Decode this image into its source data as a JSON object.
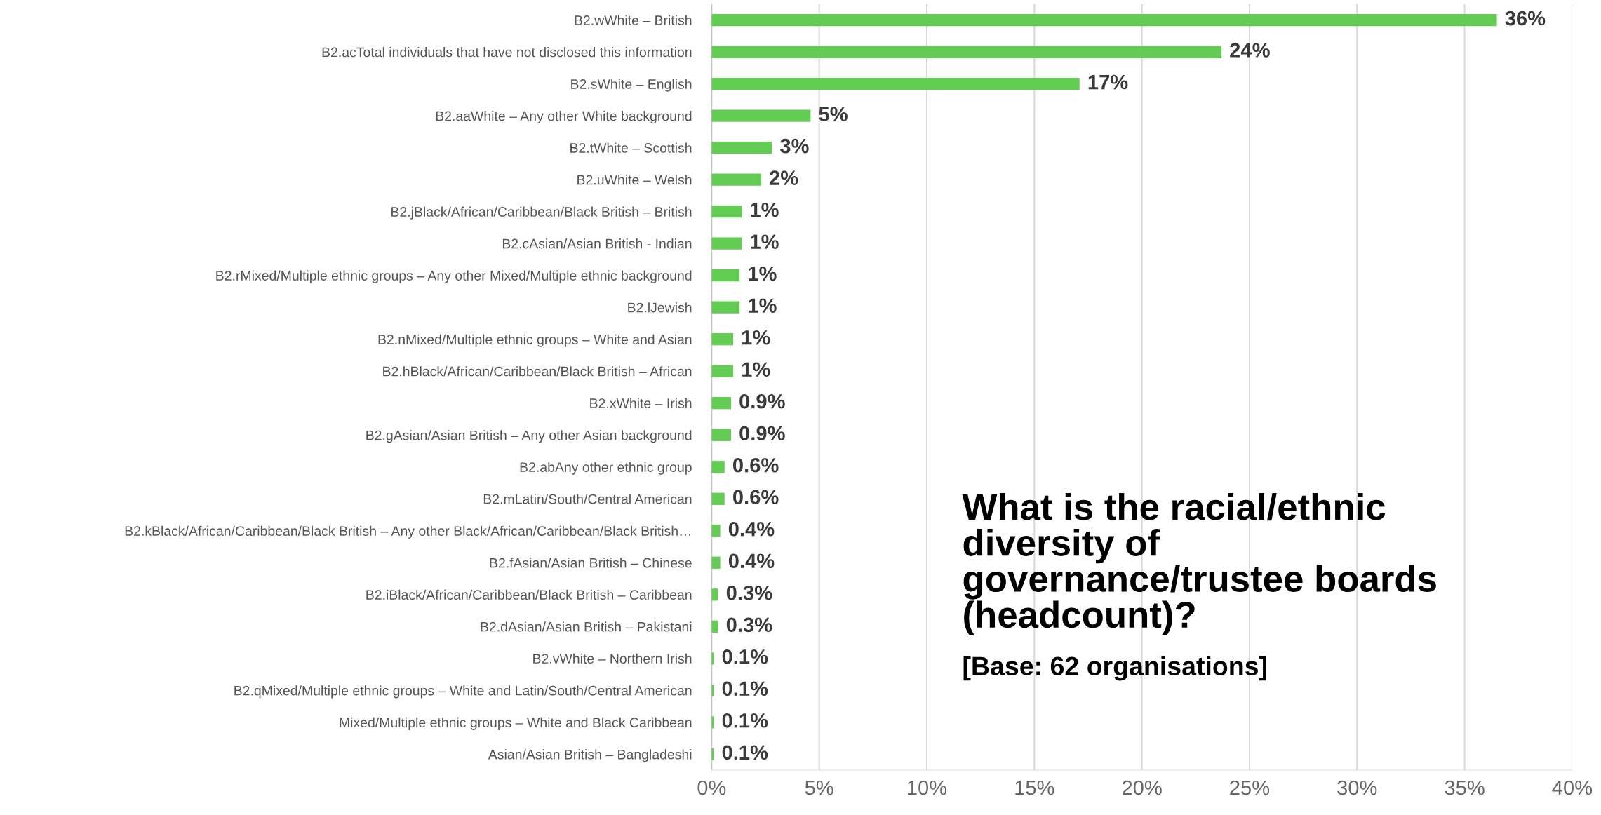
{
  "chart_data": {
    "type": "bar",
    "orientation": "horizontal",
    "title": "What is the racial/ethnic diversity of governance/trustee boards (headcount)?",
    "subtitle": "[Base: 62 organisations]",
    "categories": [
      "B2.wWhite – British",
      "B2.acTotal individuals that have not disclosed this information",
      "B2.sWhite – English",
      "B2.aaWhite – Any other White background",
      "B2.tWhite – Scottish",
      "B2.uWhite – Welsh",
      "B2.jBlack/African/Caribbean/Black British – British",
      "B2.cAsian/Asian British - Indian",
      "B2.rMixed/Multiple ethnic groups – Any other Mixed/Multiple ethnic background",
      "B2.lJewish",
      "B2.nMixed/Multiple ethnic groups – White and Asian",
      "B2.hBlack/African/Caribbean/Black British – African",
      "B2.xWhite – Irish",
      "B2.gAsian/Asian British – Any other Asian background",
      "B2.abAny other ethnic group",
      "B2.mLatin/South/Central American",
      "B2.kBlack/African/Caribbean/Black British – Any other Black/African/Caribbean/Black British…",
      "B2.fAsian/Asian British – Chinese",
      "B2.iBlack/African/Caribbean/Black British – Caribbean",
      "B2.dAsian/Asian British – Pakistani",
      "B2.vWhite – Northern Irish",
      "B2.qMixed/Multiple ethnic groups – White and Latin/South/Central American",
      "Mixed/Multiple ethnic groups – White and Black Caribbean",
      "Asian/Asian British – Bangladeshi"
    ],
    "values": [
      36.5,
      23.7,
      17.1,
      4.6,
      2.8,
      2.3,
      1.4,
      1.4,
      1.3,
      1.3,
      1.0,
      1.0,
      0.9,
      0.9,
      0.6,
      0.6,
      0.4,
      0.4,
      0.3,
      0.3,
      0.1,
      0.1,
      0.1,
      0.1
    ],
    "value_labels": [
      "36%",
      "24%",
      "17%",
      "5%",
      "3%",
      "2%",
      "1%",
      "1%",
      "1%",
      "1%",
      "1%",
      "1%",
      "0.9%",
      "0.9%",
      "0.6%",
      "0.6%",
      "0.4%",
      "0.4%",
      "0.3%",
      "0.3%",
      "0.1%",
      "0.1%",
      "0.1%",
      "0.1%"
    ],
    "color": "#62cd52",
    "xlim": [
      0,
      40
    ],
    "xticks": [
      {
        "value": 0,
        "label": "0%"
      },
      {
        "value": 5,
        "label": "5%"
      },
      {
        "value": 10,
        "label": "10%"
      },
      {
        "value": 15,
        "label": "15%"
      },
      {
        "value": 20,
        "label": "20%"
      },
      {
        "value": 25,
        "label": "25%"
      },
      {
        "value": 30,
        "label": "30%"
      },
      {
        "value": 35,
        "label": "35%"
      },
      {
        "value": 40,
        "label": "40%"
      }
    ],
    "grid": "x",
    "legend": false
  }
}
